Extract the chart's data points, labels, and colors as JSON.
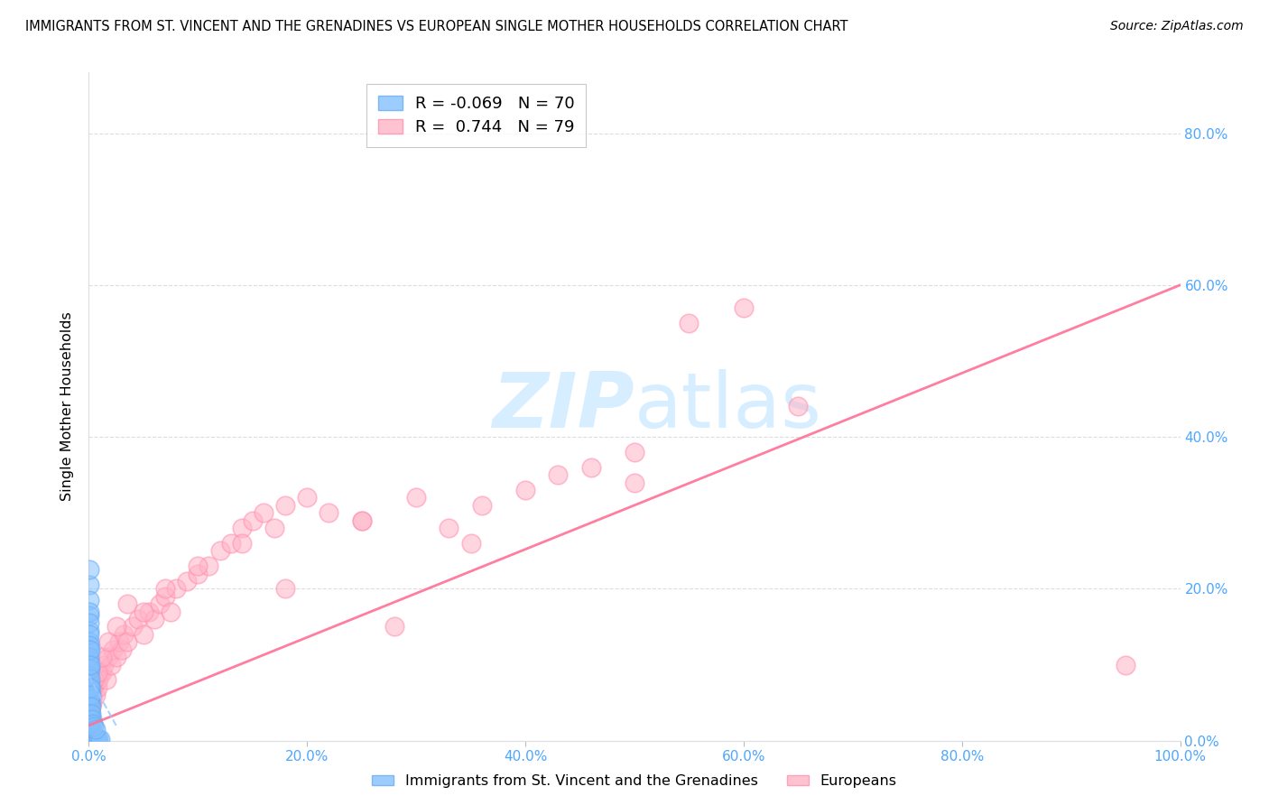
{
  "title": "IMMIGRANTS FROM ST. VINCENT AND THE GRENADINES VS EUROPEAN SINGLE MOTHER HOUSEHOLDS CORRELATION CHART",
  "source": "Source: ZipAtlas.com",
  "ylabel": "Single Mother Households",
  "xlim": [
    0,
    1.0
  ],
  "ylim": [
    0,
    0.88
  ],
  "yticks": [
    0,
    0.2,
    0.4,
    0.6,
    0.8
  ],
  "ytick_labels": [
    "0.0%",
    "20.0%",
    "40.0%",
    "60.0%",
    "80.0%"
  ],
  "xticks": [
    0,
    0.2,
    0.4,
    0.6,
    0.8,
    1.0
  ],
  "xtick_labels": [
    "0.0%",
    "20.0%",
    "40.0%",
    "60.0%",
    "80.0%",
    "100.0%"
  ],
  "legend_blue_r": "-0.069",
  "legend_blue_n": "70",
  "legend_pink_r": "0.744",
  "legend_pink_n": "79",
  "blue_color": "#85C1FF",
  "pink_color": "#FFB3C6",
  "blue_edge_color": "#6aaaf0",
  "pink_edge_color": "#FF8FAF",
  "blue_line_color": "#99CCFF",
  "pink_line_color": "#FF7096",
  "watermark_zip": "ZIP",
  "watermark_atlas": "atlas",
  "watermark_color": "#D6EEFF",
  "title_fontsize": 10.5,
  "axis_tick_color": "#4DA6FF",
  "blue_scatter_x": [
    0.0005,
    0.0005,
    0.0005,
    0.0005,
    0.0005,
    0.0008,
    0.0008,
    0.0008,
    0.0008,
    0.001,
    0.001,
    0.001,
    0.001,
    0.001,
    0.001,
    0.001,
    0.001,
    0.001,
    0.0012,
    0.0012,
    0.0012,
    0.0012,
    0.0015,
    0.0015,
    0.0015,
    0.0015,
    0.0015,
    0.0018,
    0.0018,
    0.002,
    0.002,
    0.002,
    0.002,
    0.0025,
    0.0025,
    0.003,
    0.003,
    0.003,
    0.003,
    0.004,
    0.004,
    0.004,
    0.005,
    0.005,
    0.006,
    0.006,
    0.007,
    0.008,
    0.009,
    0.01,
    0.0005,
    0.0005,
    0.0005,
    0.0008,
    0.0008,
    0.001,
    0.001,
    0.001,
    0.001,
    0.0012,
    0.0012,
    0.0015,
    0.002,
    0.002,
    0.0025,
    0.003,
    0.004,
    0.005,
    0.006,
    0.0005
  ],
  "blue_scatter_y": [
    0.205,
    0.185,
    0.165,
    0.145,
    0.13,
    0.12,
    0.105,
    0.095,
    0.085,
    0.075,
    0.065,
    0.058,
    0.05,
    0.045,
    0.038,
    0.032,
    0.028,
    0.022,
    0.018,
    0.015,
    0.012,
    0.01,
    0.009,
    0.008,
    0.007,
    0.006,
    0.005,
    0.005,
    0.004,
    0.005,
    0.004,
    0.004,
    0.003,
    0.003,
    0.003,
    0.003,
    0.003,
    0.003,
    0.002,
    0.002,
    0.002,
    0.002,
    0.002,
    0.002,
    0.002,
    0.002,
    0.002,
    0.002,
    0.002,
    0.002,
    0.17,
    0.155,
    0.14,
    0.125,
    0.11,
    0.095,
    0.082,
    0.068,
    0.055,
    0.12,
    0.1,
    0.07,
    0.06,
    0.045,
    0.035,
    0.028,
    0.022,
    0.018,
    0.015,
    0.225
  ],
  "pink_scatter_x": [
    0.0005,
    0.0008,
    0.001,
    0.0012,
    0.0015,
    0.002,
    0.002,
    0.003,
    0.003,
    0.004,
    0.005,
    0.006,
    0.007,
    0.008,
    0.009,
    0.01,
    0.012,
    0.014,
    0.016,
    0.018,
    0.02,
    0.022,
    0.025,
    0.028,
    0.03,
    0.032,
    0.035,
    0.04,
    0.045,
    0.05,
    0.055,
    0.06,
    0.065,
    0.07,
    0.075,
    0.08,
    0.09,
    0.1,
    0.11,
    0.12,
    0.13,
    0.14,
    0.15,
    0.16,
    0.17,
    0.18,
    0.2,
    0.22,
    0.25,
    0.28,
    0.3,
    0.33,
    0.36,
    0.4,
    0.43,
    0.46,
    0.5,
    0.55,
    0.6,
    0.65,
    0.0008,
    0.001,
    0.002,
    0.003,
    0.005,
    0.008,
    0.012,
    0.018,
    0.025,
    0.035,
    0.05,
    0.07,
    0.1,
    0.14,
    0.18,
    0.25,
    0.35,
    0.5,
    0.95
  ],
  "pink_scatter_y": [
    0.02,
    0.03,
    0.03,
    0.04,
    0.04,
    0.05,
    0.06,
    0.05,
    0.07,
    0.06,
    0.07,
    0.06,
    0.08,
    0.07,
    0.08,
    0.09,
    0.09,
    0.1,
    0.08,
    0.11,
    0.1,
    0.12,
    0.11,
    0.13,
    0.12,
    0.14,
    0.13,
    0.15,
    0.16,
    0.14,
    0.17,
    0.16,
    0.18,
    0.19,
    0.17,
    0.2,
    0.21,
    0.22,
    0.23,
    0.25,
    0.26,
    0.28,
    0.29,
    0.3,
    0.28,
    0.31,
    0.32,
    0.3,
    0.29,
    0.15,
    0.32,
    0.28,
    0.31,
    0.33,
    0.35,
    0.36,
    0.38,
    0.55,
    0.57,
    0.44,
    0.04,
    0.05,
    0.06,
    0.07,
    0.08,
    0.09,
    0.11,
    0.13,
    0.15,
    0.18,
    0.17,
    0.2,
    0.23,
    0.26,
    0.2,
    0.29,
    0.26,
    0.34,
    0.1
  ],
  "pink_line_x0": 0.0,
  "pink_line_x1": 1.0,
  "pink_line_y0": 0.02,
  "pink_line_y1": 0.6,
  "blue_line_x0": 0.0,
  "blue_line_x1": 0.025,
  "blue_line_y0": 0.085,
  "blue_line_y1": 0.02
}
